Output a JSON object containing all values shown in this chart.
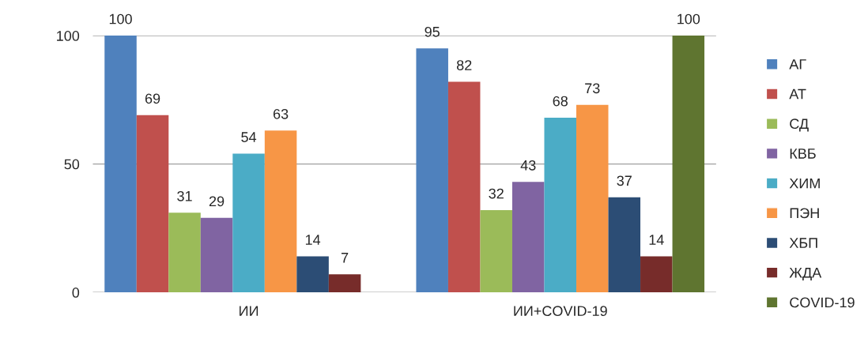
{
  "chart_data": {
    "type": "bar",
    "categories": [
      "ИИ",
      "ИИ+COVID-19"
    ],
    "series": [
      {
        "name": "АГ",
        "color": "#4f81bd",
        "values": [
          100,
          95
        ]
      },
      {
        "name": "АТ",
        "color": "#c0504d",
        "values": [
          69,
          82
        ]
      },
      {
        "name": "СД",
        "color": "#9bbb59",
        "values": [
          31,
          32
        ]
      },
      {
        "name": "КВБ",
        "color": "#8064a2",
        "values": [
          29,
          43
        ]
      },
      {
        "name": "ХИМ",
        "color": "#4bacc6",
        "values": [
          54,
          68
        ]
      },
      {
        "name": "ПЭН",
        "color": "#f79646",
        "values": [
          63,
          73
        ]
      },
      {
        "name": "ХБП",
        "color": "#2c4d75",
        "values": [
          14,
          37
        ]
      },
      {
        "name": "ЖДА",
        "color": "#772c2a",
        "values": [
          7,
          14
        ]
      },
      {
        "name": "COVID-19",
        "color": "#5f7530",
        "values": [
          null,
          100
        ]
      }
    ],
    "ylim": [
      0,
      100
    ],
    "yticks": [
      0,
      50,
      100
    ],
    "grid": "y",
    "legend": "right",
    "data_labels": true
  }
}
